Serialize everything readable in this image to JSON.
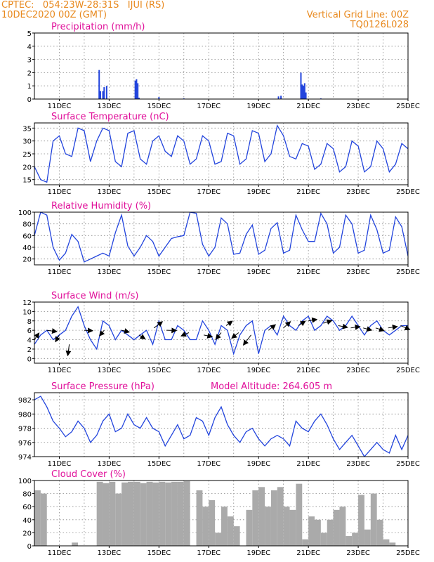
{
  "header": {
    "line1_left": "CPTEC:   054:23W-28:31S   IJUI (RS)",
    "line2_left": "10DEC2020 00Z (GMT)",
    "line2_right": "Vertical Grid Line: 00Z",
    "line3_right": "TQ0126L028"
  },
  "colors": {
    "header": "#e8891e",
    "title": "#e0109a",
    "series": "#2244dd",
    "bars": "#2244dd",
    "cloud": "#aaaaaa"
  },
  "x_tick_labels": [
    "11DEC",
    "13DEC",
    "15DEC",
    "17DEC",
    "19DEC",
    "21DEC",
    "23DEC",
    "25DEC"
  ],
  "chart_data": [
    {
      "type": "bar",
      "title": "Precipitation (mm/h)",
      "ylim": [
        0,
        5
      ],
      "y_ticks": [
        0,
        1,
        2,
        3,
        4,
        5
      ],
      "x_range_days": [
        10,
        25
      ],
      "x": [
        12.6,
        12.65,
        12.75,
        12.8,
        12.9,
        14.05,
        14.1,
        14.15,
        14.2,
        15.0,
        16.0,
        19.8,
        19.9,
        20.7,
        20.75,
        20.8,
        20.85,
        20.9,
        21.5
      ],
      "values": [
        2.2,
        0.6,
        0.6,
        0.9,
        1.0,
        1.4,
        1.5,
        1.2,
        0.1,
        0.15,
        0.05,
        0.2,
        0.25,
        2.0,
        1.1,
        1.0,
        1.2,
        0.5,
        0.05
      ]
    },
    {
      "type": "line",
      "title": "Surface Temperature (nC)",
      "ylim": [
        13,
        37
      ],
      "y_ticks": [
        15,
        20,
        25,
        30,
        35
      ],
      "x": [
        10.0,
        10.25,
        10.5,
        10.75,
        11.0,
        11.25,
        11.5,
        11.75,
        12.0,
        12.25,
        12.5,
        12.75,
        13.0,
        13.25,
        13.5,
        13.75,
        14.0,
        14.25,
        14.5,
        14.75,
        15.0,
        15.25,
        15.5,
        15.75,
        16.0,
        16.25,
        16.5,
        16.75,
        17.0,
        17.25,
        17.5,
        17.75,
        18.0,
        18.25,
        18.5,
        18.75,
        19.0,
        19.25,
        19.5,
        19.75,
        20.0,
        20.25,
        20.5,
        20.75,
        21.0,
        21.25,
        21.5,
        21.75,
        22.0,
        22.25,
        22.5,
        22.75,
        23.0,
        23.25,
        23.5,
        23.75,
        24.0,
        24.25,
        24.5,
        24.75,
        25.0
      ],
      "values": [
        20,
        15,
        14,
        30,
        32,
        25,
        24,
        35,
        34,
        22,
        30,
        35,
        34,
        22,
        20,
        33,
        34,
        23,
        21,
        30,
        32,
        26,
        24,
        32,
        30,
        21,
        23,
        32,
        30,
        21,
        22,
        33,
        32,
        21,
        23,
        34,
        33,
        22,
        25,
        36,
        32,
        24,
        23,
        29,
        28,
        19,
        21,
        29,
        27,
        18,
        20,
        30,
        28,
        18,
        20,
        30,
        27,
        18,
        21,
        29,
        27
      ]
    },
    {
      "type": "line",
      "title": "Relative Humidity (%)",
      "ylim": [
        10,
        100
      ],
      "y_ticks": [
        20,
        40,
        60,
        80,
        100
      ],
      "x": [
        10.0,
        10.25,
        10.5,
        10.75,
        11.0,
        11.25,
        11.5,
        11.75,
        12.0,
        12.25,
        12.5,
        12.75,
        13.0,
        13.25,
        13.5,
        13.75,
        14.0,
        14.25,
        14.5,
        14.75,
        15.0,
        15.25,
        15.5,
        15.75,
        16.0,
        16.25,
        16.5,
        16.75,
        17.0,
        17.25,
        17.5,
        17.75,
        18.0,
        18.25,
        18.5,
        18.75,
        19.0,
        19.25,
        19.5,
        19.75,
        20.0,
        20.25,
        20.5,
        20.75,
        21.0,
        21.25,
        21.5,
        21.75,
        22.0,
        22.25,
        22.5,
        22.75,
        23.0,
        23.25,
        23.5,
        23.75,
        24.0,
        24.25,
        24.5,
        24.75,
        25.0
      ],
      "values": [
        60,
        100,
        95,
        40,
        18,
        30,
        62,
        50,
        15,
        20,
        25,
        30,
        25,
        65,
        95,
        42,
        25,
        40,
        60,
        50,
        25,
        40,
        55,
        58,
        60,
        100,
        98,
        45,
        25,
        40,
        90,
        80,
        28,
        30,
        62,
        78,
        28,
        35,
        72,
        82,
        30,
        35,
        95,
        70,
        50,
        50,
        98,
        80,
        30,
        40,
        95,
        80,
        30,
        35,
        95,
        70,
        30,
        35,
        92,
        75,
        25
      ]
    },
    {
      "type": "line",
      "title": "Surface Wind (m/s)",
      "ylim": [
        -1,
        12
      ],
      "y_ticks": [
        0,
        2,
        4,
        6,
        8,
        10,
        12
      ],
      "x": [
        10.0,
        10.25,
        10.5,
        10.75,
        11.0,
        11.25,
        11.5,
        11.75,
        12.0,
        12.25,
        12.5,
        12.75,
        13.0,
        13.25,
        13.5,
        13.75,
        14.0,
        14.25,
        14.5,
        14.75,
        15.0,
        15.25,
        15.5,
        15.75,
        16.0,
        16.25,
        16.5,
        16.75,
        17.0,
        17.25,
        17.5,
        17.75,
        18.0,
        18.25,
        18.5,
        18.75,
        19.0,
        19.25,
        19.5,
        19.75,
        20.0,
        20.25,
        20.5,
        20.75,
        21.0,
        21.25,
        21.5,
        21.75,
        22.0,
        22.25,
        22.5,
        22.75,
        23.0,
        23.25,
        23.5,
        23.75,
        24.0,
        24.25,
        24.5,
        24.75,
        25.0
      ],
      "values": [
        3,
        5,
        6,
        4,
        5,
        6,
        9,
        11,
        7,
        4,
        2,
        8,
        7,
        4,
        6,
        5,
        4,
        5,
        6,
        3,
        8,
        4,
        4,
        7,
        6,
        4,
        4,
        8,
        6,
        3,
        7,
        6,
        1,
        5,
        7,
        8,
        1,
        6,
        7,
        5,
        9,
        7,
        6,
        8,
        9,
        6,
        7,
        9,
        8,
        6,
        7,
        9,
        7,
        5,
        7,
        8,
        6,
        5,
        6,
        7,
        7
      ],
      "vectors": [
        {
          "x": 10.0,
          "y": 4.0,
          "dx": 0.6,
          "dy": 3.0
        },
        {
          "x": 10.5,
          "y": 6.0,
          "dx": 1.3,
          "dy": -0.6
        },
        {
          "x": 11.0,
          "y": 5.0,
          "dx": -0.5,
          "dy": -3.0
        },
        {
          "x": 11.4,
          "y": 3.0,
          "dx": -0.2,
          "dy": -5.0
        },
        {
          "x": 12.0,
          "y": 6.0,
          "dx": 1.1,
          "dy": -0.2
        },
        {
          "x": 12.8,
          "y": 6.0,
          "dx": -0.6,
          "dy": -2.5
        },
        {
          "x": 13.5,
          "y": 6.0,
          "dx": 1.0,
          "dy": -0.8
        },
        {
          "x": 14.2,
          "y": 5.0,
          "dx": 0.8,
          "dy": -1.8
        },
        {
          "x": 14.8,
          "y": 6.5,
          "dx": 1.1,
          "dy": 2.8
        },
        {
          "x": 15.3,
          "y": 6.0,
          "dx": 1.3,
          "dy": -0.1
        },
        {
          "x": 16.2,
          "y": 5.5,
          "dx": -1.0,
          "dy": -1.5
        },
        {
          "x": 16.8,
          "y": 5.0,
          "dx": 1.1,
          "dy": -0.8
        },
        {
          "x": 17.5,
          "y": 5.5,
          "dx": -0.7,
          "dy": -3.0
        },
        {
          "x": 17.7,
          "y": 7.0,
          "dx": 0.8,
          "dy": 2.0
        },
        {
          "x": 18.2,
          "y": 5.5,
          "dx": -0.9,
          "dy": -2.5
        },
        {
          "x": 18.7,
          "y": 5.0,
          "dx": -1.0,
          "dy": -4.5
        },
        {
          "x": 19.4,
          "y": 6.0,
          "dx": 0.9,
          "dy": 2.5
        },
        {
          "x": 20.0,
          "y": 6.5,
          "dx": 0.9,
          "dy": 2.8
        },
        {
          "x": 20.6,
          "y": 7.0,
          "dx": 0.9,
          "dy": 2.0
        },
        {
          "x": 21.0,
          "y": 8.0,
          "dx": 1.1,
          "dy": 0.7
        },
        {
          "x": 21.6,
          "y": 7.5,
          "dx": 1.1,
          "dy": 1.2
        },
        {
          "x": 22.2,
          "y": 7.0,
          "dx": 1.2,
          "dy": -0.8
        },
        {
          "x": 22.7,
          "y": 6.5,
          "dx": 1.2,
          "dy": 0.6
        },
        {
          "x": 23.2,
          "y": 6.5,
          "dx": 1.1,
          "dy": -1.0
        },
        {
          "x": 23.7,
          "y": 6.5,
          "dx": 1.1,
          "dy": -1.2
        },
        {
          "x": 24.2,
          "y": 6.5,
          "dx": 1.2,
          "dy": 0.6
        },
        {
          "x": 24.7,
          "y": 7.0,
          "dx": 1.2,
          "dy": -1.8
        }
      ]
    },
    {
      "type": "line",
      "title": "Surface Pressure (hPa)",
      "annotation": "Model Altitude: 264.605 m",
      "ylim": [
        974,
        983
      ],
      "y_ticks": [
        974,
        976,
        978,
        980,
        982
      ],
      "x": [
        10.0,
        10.25,
        10.5,
        10.75,
        11.0,
        11.25,
        11.5,
        11.75,
        12.0,
        12.25,
        12.5,
        12.75,
        13.0,
        13.25,
        13.5,
        13.75,
        14.0,
        14.25,
        14.5,
        14.75,
        15.0,
        15.25,
        15.5,
        15.75,
        16.0,
        16.25,
        16.5,
        16.75,
        17.0,
        17.25,
        17.5,
        17.75,
        18.0,
        18.25,
        18.5,
        18.75,
        19.0,
        19.25,
        19.5,
        19.75,
        20.0,
        20.25,
        20.5,
        20.75,
        21.0,
        21.25,
        21.5,
        21.75,
        22.0,
        22.25,
        22.5,
        22.75,
        23.0,
        23.25,
        23.5,
        23.75,
        24.0,
        24.25,
        24.5,
        24.75,
        25.0
      ],
      "values": [
        982,
        982.5,
        981,
        979,
        978,
        976.8,
        977.5,
        979,
        978,
        976,
        977,
        979,
        980,
        977.5,
        978,
        980,
        978.5,
        978,
        979.5,
        978,
        977.5,
        975.5,
        977,
        978.5,
        976.5,
        977,
        979.5,
        979,
        977,
        979.5,
        981,
        978.5,
        977,
        976,
        977.5,
        978,
        976.5,
        975.5,
        976.5,
        977,
        976.5,
        975.5,
        979,
        978,
        977.5,
        979,
        980,
        978.5,
        976.5,
        975,
        976,
        977,
        975.5,
        974,
        975,
        976,
        975,
        974.5,
        977,
        975,
        977
      ]
    },
    {
      "type": "bar",
      "title": "Cloud Cover (%)",
      "ylim": [
        0,
        100
      ],
      "y_ticks": [
        0,
        20,
        40,
        60,
        80,
        100
      ],
      "x": [
        10.0,
        10.25,
        10.5,
        10.75,
        11.0,
        11.25,
        11.5,
        11.75,
        12.0,
        12.25,
        12.5,
        12.75,
        13.0,
        13.25,
        13.5,
        13.75,
        14.0,
        14.25,
        14.5,
        14.75,
        15.0,
        15.25,
        15.5,
        15.75,
        16.0,
        16.25,
        16.5,
        16.75,
        17.0,
        17.25,
        17.5,
        17.75,
        18.0,
        18.25,
        18.5,
        18.75,
        19.0,
        19.25,
        19.5,
        19.75,
        20.0,
        20.25,
        20.5,
        20.75,
        21.0,
        21.25,
        21.5,
        21.75,
        22.0,
        22.25,
        22.5,
        22.75,
        23.0,
        23.25,
        23.5,
        23.75,
        24.0,
        24.25,
        24.5,
        24.75,
        25.0
      ],
      "values": [
        85,
        80,
        0,
        0,
        0,
        0,
        5,
        0,
        0,
        0,
        98,
        96,
        98,
        80,
        97,
        98,
        98,
        96,
        98,
        97,
        98,
        97,
        98,
        98,
        99,
        0,
        85,
        60,
        70,
        20,
        60,
        45,
        30,
        0,
        55,
        85,
        90,
        60,
        85,
        90,
        60,
        55,
        95,
        10,
        45,
        40,
        20,
        40,
        55,
        60,
        15,
        20,
        78,
        25,
        80,
        40,
        10,
        5,
        0,
        0,
        0
      ]
    }
  ]
}
